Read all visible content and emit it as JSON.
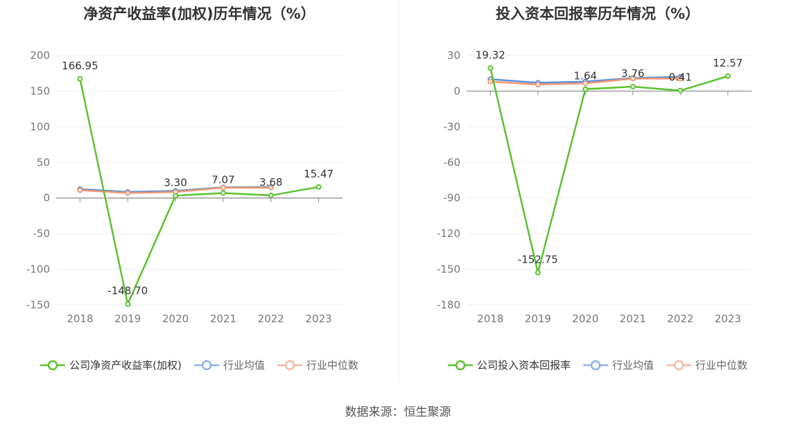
{
  "source": "数据来源：恒生聚源",
  "chart_data": [
    {
      "type": "line",
      "title": "净资产收益率(加权)历年情况（%）",
      "x": [
        "2018",
        "2019",
        "2020",
        "2021",
        "2022",
        "2023"
      ],
      "ylim": [
        -150,
        200
      ],
      "yticks": [
        200,
        150,
        100,
        50,
        0,
        -50,
        -100,
        -150
      ],
      "series": [
        {
          "name": "公司净资产收益率(加权)",
          "color": "#5ac22e",
          "values": [
            166.95,
            -148.7,
            3.3,
            7.07,
            3.68,
            15.47
          ],
          "labels": [
            "166.95",
            "-148.70",
            "3.30",
            "7.07",
            "3.68",
            "15.47"
          ]
        },
        {
          "name": "行业均值",
          "color": "#5b8fd6",
          "values": [
            12.5,
            8.5,
            10.0,
            15.0,
            15.5,
            null
          ]
        },
        {
          "name": "行业中位数",
          "color": "#f29672",
          "values": [
            11.0,
            7.0,
            8.5,
            14.5,
            14.5,
            null
          ]
        }
      ]
    },
    {
      "type": "line",
      "title": "投入资本回报率历年情况（%）",
      "x": [
        "2018",
        "2019",
        "2020",
        "2021",
        "2022",
        "2023"
      ],
      "ylim": [
        -180,
        30
      ],
      "yticks": [
        30,
        0,
        -30,
        -60,
        -90,
        -120,
        -150,
        -180
      ],
      "series": [
        {
          "name": "公司投入资本回报率",
          "color": "#5ac22e",
          "values": [
            19.32,
            -152.75,
            1.64,
            3.76,
            0.41,
            12.57
          ],
          "labels": [
            "19.32",
            "-152.75",
            "1.64",
            "3.76",
            "0.41",
            "12.57"
          ]
        },
        {
          "name": "行业均值",
          "color": "#5b8fd6",
          "values": [
            10.0,
            7.0,
            8.0,
            11.0,
            12.0,
            null
          ]
        },
        {
          "name": "行业中位数",
          "color": "#f29672",
          "values": [
            8.0,
            5.5,
            6.5,
            10.5,
            10.5,
            null
          ]
        }
      ]
    }
  ]
}
